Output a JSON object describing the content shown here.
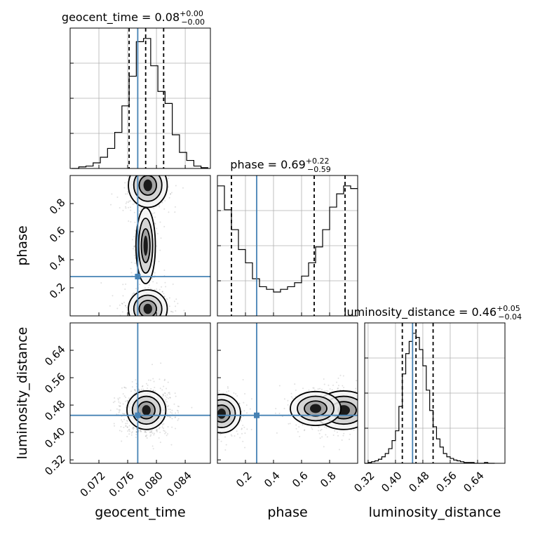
{
  "chart_data": {
    "type": "corner",
    "parameters": [
      "geocent_time",
      "phase",
      "luminosity_distance"
    ],
    "truth": {
      "geocent_time": 0.0774,
      "phase": 0.28,
      "luminosity_distance": 0.45
    },
    "titles": [
      {
        "param": "geocent_time",
        "median": "0.08",
        "upper": "+0.00",
        "lower": "−0.00",
        "text": "geocent_time = 0.08"
      },
      {
        "param": "phase",
        "median": "0.69",
        "upper": "+0.22",
        "lower": "−0.59",
        "text": "phase = 0.69"
      },
      {
        "param": "luminosity_distance",
        "median": "0.46",
        "upper": "+0.05",
        "lower": "−0.04",
        "text": "luminosity_distance = 0.46"
      }
    ],
    "axes": {
      "geocent_time": {
        "range": [
          0.068,
          0.0875
        ],
        "ticks": [
          0.072,
          0.076,
          0.08,
          0.084
        ],
        "tick_labels": [
          "0.072",
          "0.076",
          "0.080",
          "0.084"
        ],
        "label": "geocent_time"
      },
      "phase": {
        "range": [
          0.0,
          1.0
        ],
        "ticks": [
          0.2,
          0.4,
          0.6,
          0.8
        ],
        "tick_labels": [
          "0.2",
          "0.4",
          "0.6",
          "0.8"
        ],
        "label": "phase"
      },
      "luminosity_distance": {
        "range": [
          0.31,
          0.72
        ],
        "ticks": [
          0.32,
          0.4,
          0.48,
          0.56,
          0.64
        ],
        "tick_labels": [
          "0.32",
          "0.40",
          "0.48",
          "0.56",
          "0.64"
        ],
        "label": "luminosity_distance"
      }
    },
    "histograms": {
      "geocent_time": {
        "quantiles": [
          0.0762,
          0.0785,
          0.081
        ],
        "bin_edges": [
          0.0682,
          0.0692,
          0.0702,
          0.0712,
          0.0722,
          0.0732,
          0.0742,
          0.0752,
          0.0762,
          0.0772,
          0.0782,
          0.0792,
          0.0802,
          0.0812,
          0.0822,
          0.0832,
          0.0842,
          0.0852,
          0.0862,
          0.0872
        ],
        "counts": [
          0,
          2,
          3,
          7,
          14,
          25,
          45,
          78,
          115,
          158,
          162,
          128,
          96,
          81,
          42,
          20,
          10,
          3,
          1
        ]
      },
      "phase": {
        "quantiles": [
          0.1,
          0.69,
          0.91
        ],
        "bin_edges": [
          0.0,
          0.05,
          0.1,
          0.15,
          0.2,
          0.25,
          0.3,
          0.35,
          0.4,
          0.45,
          0.5,
          0.55,
          0.6,
          0.65,
          0.7,
          0.75,
          0.8,
          0.85,
          0.9,
          0.95,
          1.0
        ],
        "counts": [
          98,
          80,
          65,
          50,
          40,
          28,
          22,
          20,
          18,
          20,
          22,
          25,
          30,
          40,
          52,
          65,
          82,
          92,
          98,
          96
        ]
      },
      "luminosity_distance": {
        "quantiles": [
          0.42,
          0.46,
          0.51
        ],
        "bin_edges": [
          0.31,
          0.32,
          0.33,
          0.34,
          0.35,
          0.36,
          0.37,
          0.38,
          0.39,
          0.4,
          0.41,
          0.42,
          0.43,
          0.44,
          0.45,
          0.46,
          0.47,
          0.48,
          0.49,
          0.5,
          0.51,
          0.52,
          0.53,
          0.54,
          0.55,
          0.56,
          0.57,
          0.58,
          0.59,
          0.6,
          0.61,
          0.62,
          0.63,
          0.64,
          0.65,
          0.66,
          0.67,
          0.68,
          0.69
        ],
        "counts": [
          0,
          1,
          2,
          3,
          5,
          8,
          12,
          18,
          28,
          40,
          70,
          110,
          135,
          150,
          160,
          155,
          140,
          120,
          90,
          65,
          45,
          30,
          20,
          12,
          8,
          6,
          4,
          3,
          2,
          1,
          1,
          1,
          0,
          0,
          0,
          1,
          0,
          0
        ]
      }
    },
    "grid": true,
    "truth_color": "#4682b4"
  },
  "colors": {
    "truth": "#4682b4",
    "hist": "#000000",
    "grid": "#b0b0b0",
    "scatter": "#000000"
  }
}
